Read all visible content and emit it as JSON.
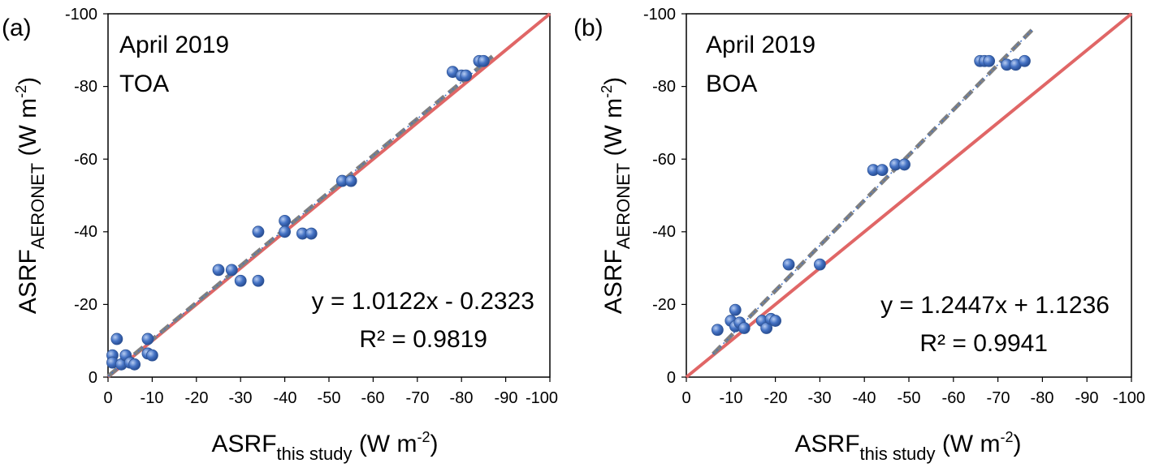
{
  "chart_data": [
    {
      "type": "scatter",
      "panel_label": "(a)",
      "annotation_lines": [
        "April 2019",
        "TOA"
      ],
      "equation": "y = 1.0122x - 0.2323",
      "r2": "R² = 0.9819",
      "xlabel": {
        "main": "ASRF",
        "sub": "this study",
        "unit": " (W m",
        "sup": "-2",
        "close": ")"
      },
      "ylabel": {
        "main": "ASRF",
        "sub": "AERONET",
        "unit": " (W m",
        "sup": "-2",
        "close": ")"
      },
      "xlim": [
        0,
        -100
      ],
      "ylim": [
        0,
        -100
      ],
      "xticks": [
        0,
        -10,
        -20,
        -30,
        -40,
        -50,
        -60,
        -70,
        -80,
        -90,
        -100
      ],
      "yticks": [
        0,
        -20,
        -40,
        -60,
        -80,
        -100
      ],
      "xtick_labels": [
        "0",
        "-10",
        "-20",
        "-30",
        "-40",
        "-50",
        "-60",
        "-70",
        "-80",
        "-90",
        "-100"
      ],
      "ytick_labels": [
        "0",
        "-20",
        "-40",
        "-60",
        "-80",
        "-100"
      ],
      "grid": false,
      "points": [
        {
          "x": -1,
          "y": -6
        },
        {
          "x": -1,
          "y": -4
        },
        {
          "x": -2,
          "y": -10.5
        },
        {
          "x": -3,
          "y": -3.5
        },
        {
          "x": -4,
          "y": -6
        },
        {
          "x": -5,
          "y": -4
        },
        {
          "x": -6,
          "y": -3.5
        },
        {
          "x": -9,
          "y": -10.5
        },
        {
          "x": -9,
          "y": -6.5
        },
        {
          "x": -10,
          "y": -6
        },
        {
          "x": -25,
          "y": -29.5
        },
        {
          "x": -28,
          "y": -29.5
        },
        {
          "x": -30,
          "y": -26.5
        },
        {
          "x": -34,
          "y": -26.5
        },
        {
          "x": -34,
          "y": -40
        },
        {
          "x": -40,
          "y": -43
        },
        {
          "x": -40,
          "y": -40
        },
        {
          "x": -44,
          "y": -39.5
        },
        {
          "x": -46,
          "y": -39.5
        },
        {
          "x": -53,
          "y": -54
        },
        {
          "x": -55,
          "y": -54
        },
        {
          "x": -78,
          "y": -84
        },
        {
          "x": -80,
          "y": -83
        },
        {
          "x": -81,
          "y": -83
        },
        {
          "x": -84,
          "y": -87
        },
        {
          "x": -85,
          "y": -87
        }
      ],
      "fit": {
        "slope": 1.0122,
        "intercept": -0.2323,
        "color": "#808080",
        "style": "dashed"
      },
      "one_to_one": {
        "color": "#e06666"
      },
      "marker_color": "#4472c4"
    },
    {
      "type": "scatter",
      "panel_label": "(b)",
      "annotation_lines": [
        "April 2019",
        "BOA"
      ],
      "equation": "y = 1.2447x + 1.1236",
      "r2": "R² = 0.9941",
      "xlabel": {
        "main": "ASRF",
        "sub": "this study",
        "unit": " (W m",
        "sup": "-2",
        "close": ")"
      },
      "ylabel": {
        "main": "ASRF",
        "sub": "AERONET",
        "unit": " (W m",
        "sup": "-2",
        "close": ")"
      },
      "xlim": [
        0,
        -100
      ],
      "ylim": [
        0,
        -100
      ],
      "xticks": [
        0,
        -10,
        -20,
        -30,
        -40,
        -50,
        -60,
        -70,
        -80,
        -90,
        -100
      ],
      "yticks": [
        0,
        -20,
        -40,
        -60,
        -80,
        -100
      ],
      "xtick_labels": [
        "0",
        "-10",
        "-20",
        "-30",
        "-40",
        "-50",
        "-60",
        "-70",
        "-80",
        "-90",
        "-100"
      ],
      "ytick_labels": [
        "0",
        "-20",
        "-40",
        "-60",
        "-80",
        "-100"
      ],
      "grid": false,
      "points": [
        {
          "x": -7,
          "y": -13
        },
        {
          "x": -10,
          "y": -15.5
        },
        {
          "x": -11,
          "y": -18.5
        },
        {
          "x": -11,
          "y": -14
        },
        {
          "x": -12,
          "y": -15
        },
        {
          "x": -13,
          "y": -13.5
        },
        {
          "x": -17,
          "y": -15.5
        },
        {
          "x": -18,
          "y": -13.5
        },
        {
          "x": -19,
          "y": -16
        },
        {
          "x": -20,
          "y": -15.5
        },
        {
          "x": -23,
          "y": -31
        },
        {
          "x": -30,
          "y": -31
        },
        {
          "x": -42,
          "y": -57
        },
        {
          "x": -44,
          "y": -57
        },
        {
          "x": -47,
          "y": -58.5
        },
        {
          "x": -49,
          "y": -58.5
        },
        {
          "x": -66,
          "y": -87
        },
        {
          "x": -67,
          "y": -87
        },
        {
          "x": -68,
          "y": -87
        },
        {
          "x": -72,
          "y": -86
        },
        {
          "x": -74,
          "y": -86
        },
        {
          "x": -76,
          "y": -87
        }
      ],
      "fit": {
        "slope": 1.2447,
        "intercept": 1.1236,
        "color": "#808080",
        "style": "dashed"
      },
      "one_to_one": {
        "color": "#e06666"
      },
      "marker_color": "#4472c4"
    }
  ]
}
